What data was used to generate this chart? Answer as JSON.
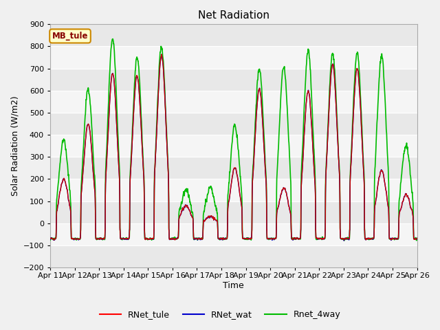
{
  "title": "Net Radiation",
  "xlabel": "Time",
  "ylabel": "Solar Radiation (W/m2)",
  "ylim": [
    -200,
    900
  ],
  "yticks": [
    -200,
    -100,
    0,
    100,
    200,
    300,
    400,
    500,
    600,
    700,
    800,
    900
  ],
  "fig_bg_color": "#f0f0f0",
  "plot_bg_color": "#ffffff",
  "grid_color": "#dddddd",
  "legend_items": [
    "RNet_tule",
    "RNet_wat",
    "Rnet_4way"
  ],
  "legend_colors": [
    "#ff0000",
    "#0000cc",
    "#00bb00"
  ],
  "site_label": "MB_tule",
  "site_label_bg": "#ffffcc",
  "site_label_border": "#cc8800",
  "site_label_color": "#880000",
  "line_colors": {
    "tule": "#cc0000",
    "wat": "#0000bb",
    "4way": "#00bb00"
  },
  "line_widths": {
    "tule": 1.0,
    "wat": 1.0,
    "4way": 1.2
  },
  "n_points": 3600,
  "band_colors": [
    "#e8e8e8",
    "#f5f5f5"
  ]
}
